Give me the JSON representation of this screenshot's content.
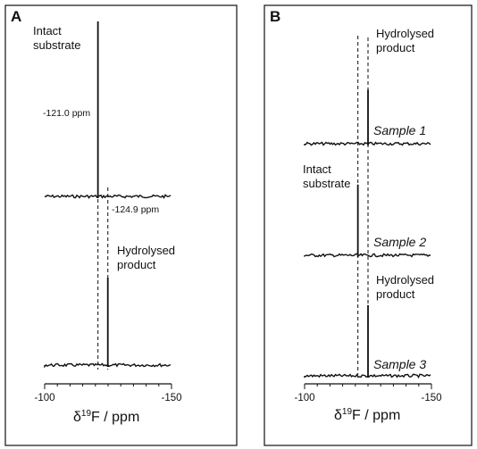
{
  "chart_data": [
    {
      "panel": "A",
      "type": "line",
      "x_axis": {
        "label": "δ19F / ppm",
        "ticks": [
          -100,
          -150
        ],
        "xlim": [
          -100,
          -150
        ],
        "reversed": true
      },
      "spectra": [
        {
          "peak_ppm": -121.0,
          "relative_height": 1.0,
          "annotations": [
            "Intact",
            "substrate",
            "-121.0 ppm"
          ]
        },
        {
          "peak_ppm": -124.9,
          "relative_height": 0.5,
          "annotations": [
            "-124.9 ppm",
            "Hydrolysed",
            "product"
          ]
        }
      ],
      "reference_lines_ppm": [
        -121.0,
        -124.9
      ]
    },
    {
      "panel": "B",
      "type": "line",
      "x_axis": {
        "label": "δ19F / ppm",
        "ticks": [
          -100,
          -150
        ],
        "xlim": [
          -100,
          -150
        ],
        "reversed": true
      },
      "spectra": [
        {
          "name": "Sample 1",
          "peak_ppm": -125.0,
          "relative_height": 0.55,
          "annotations": [
            "Hydrolysed",
            "product"
          ]
        },
        {
          "name": "Sample 2",
          "peak_ppm": -121.0,
          "relative_height": 0.72,
          "annotations": [
            "Intact",
            "substrate"
          ]
        },
        {
          "name": "Sample 3",
          "peak_ppm": -125.0,
          "relative_height": 0.72,
          "annotations": [
            "Hydrolysed",
            "product"
          ]
        }
      ],
      "reference_lines_ppm": [
        -121.0,
        -125.0
      ]
    }
  ]
}
